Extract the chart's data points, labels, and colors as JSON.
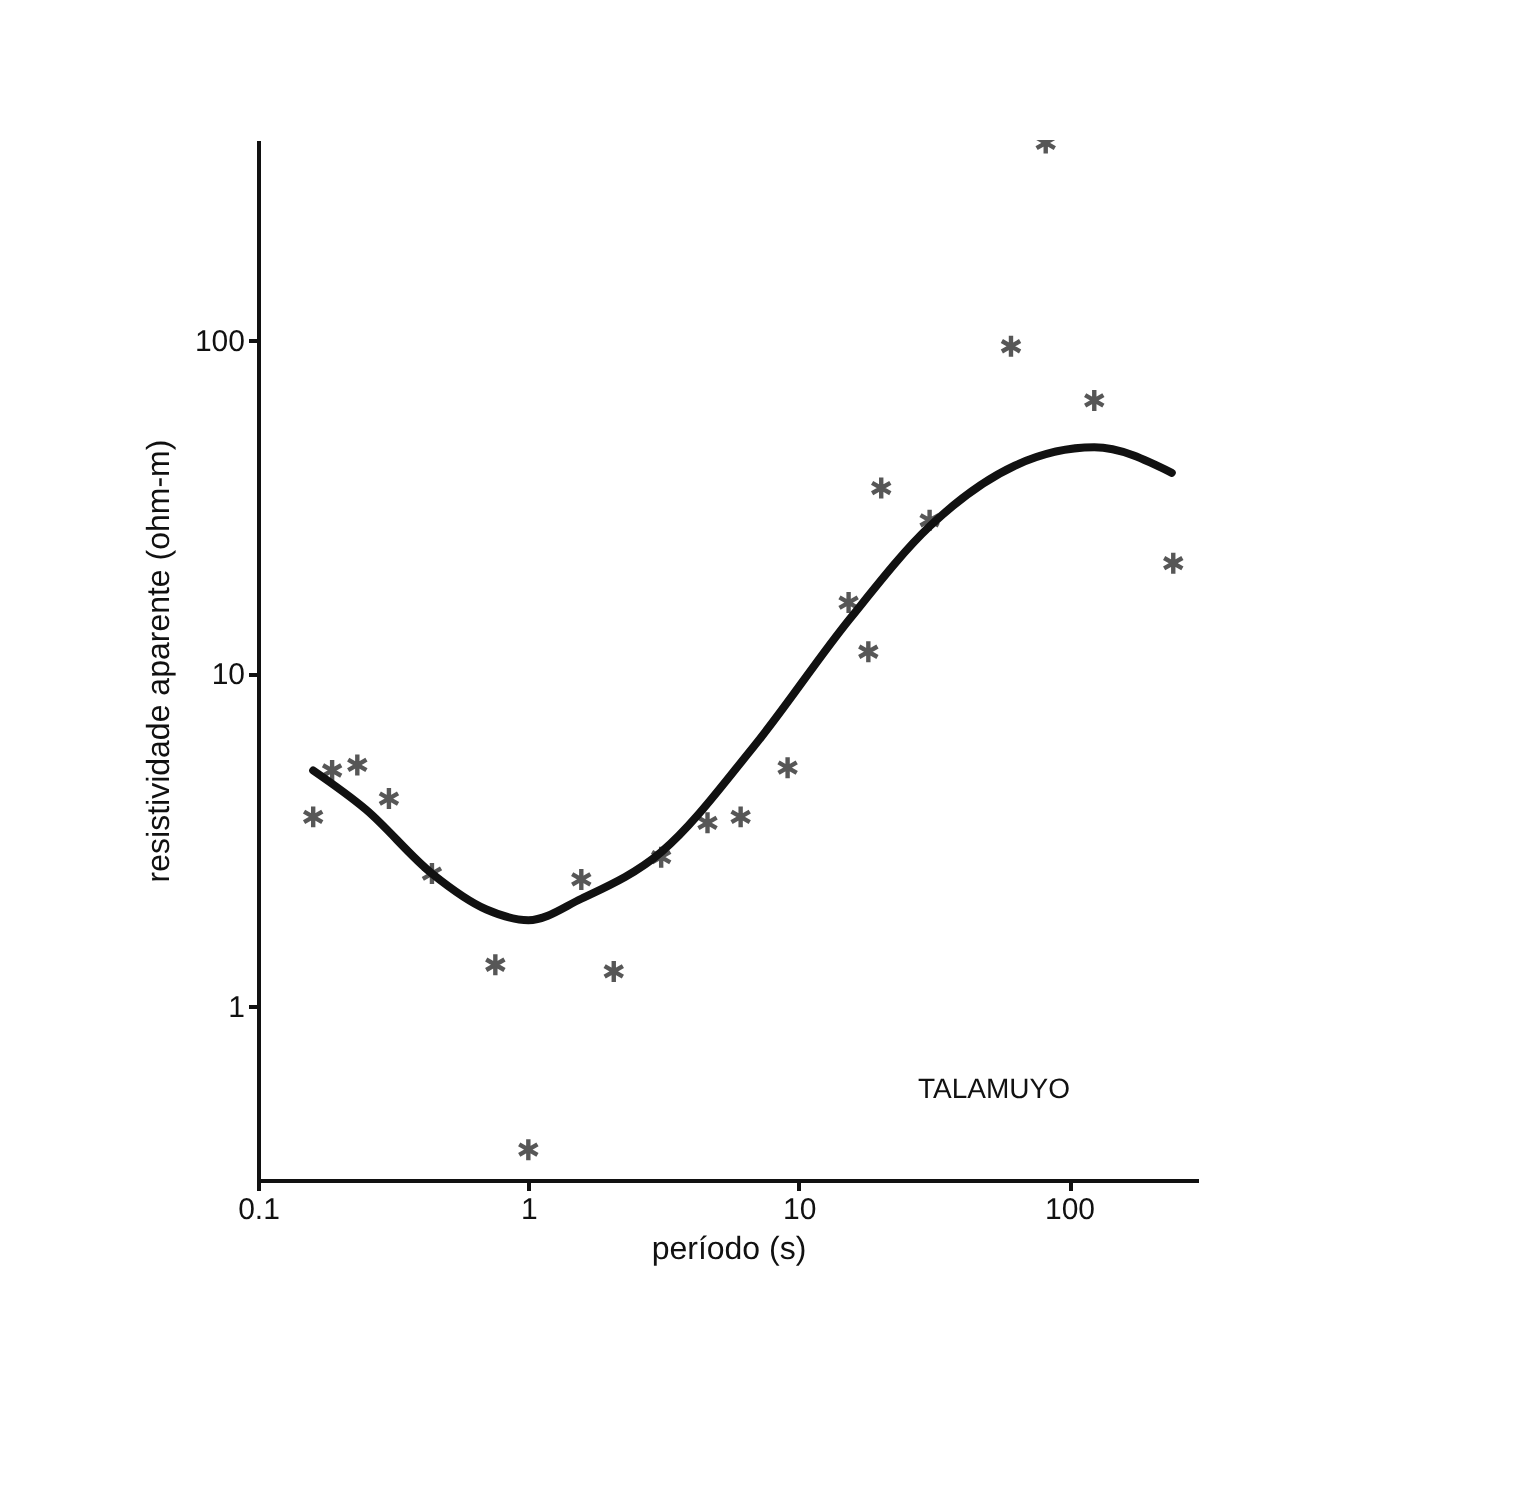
{
  "chart_data": {
    "type": "scatter",
    "xlabel": "período (s)",
    "ylabel": "resistividade aparente (ohm-m)",
    "log": "xy",
    "xlim": [
      0.1,
      300
    ],
    "ylim": [
      0.3,
      400
    ],
    "xticks": [
      0.1,
      1,
      10,
      100
    ],
    "yticks": [
      1,
      10,
      100
    ],
    "grid": false,
    "marker": "cross",
    "annotations": [
      "TALAMUYO"
    ],
    "series": [
      {
        "color": "#111111",
        "x": [
          0.16,
          0.188,
          0.233,
          0.305,
          0.44,
          0.755,
          1.0,
          1.57,
          2.07,
          3.1,
          4.6,
          6.1,
          9.1,
          15.3,
          18.1,
          20.2,
          30.5,
          61,
          82,
          124,
          243
        ],
        "values": [
          3.7,
          5.1,
          5.3,
          4.2,
          2.5,
          1.33,
          0.37,
          2.4,
          1.27,
          2.8,
          3.55,
          3.7,
          5.2,
          16.3,
          11.6,
          36,
          28.8,
          96,
          392,
          66,
          21.4
        ]
      },
      {
        "type": "line",
        "color": "#111111",
        "marker": "none",
        "x": [
          0.16,
          0.25,
          0.44,
          0.7,
          1.0,
          1.57,
          3.1,
          6.8,
          15.5,
          30.5,
          63,
          124,
          240
        ],
        "values": [
          5.1,
          3.9,
          2.5,
          1.95,
          1.81,
          2.1,
          2.9,
          6.0,
          14.6,
          27.6,
          42,
          47.7,
          40
        ]
      }
    ]
  }
}
